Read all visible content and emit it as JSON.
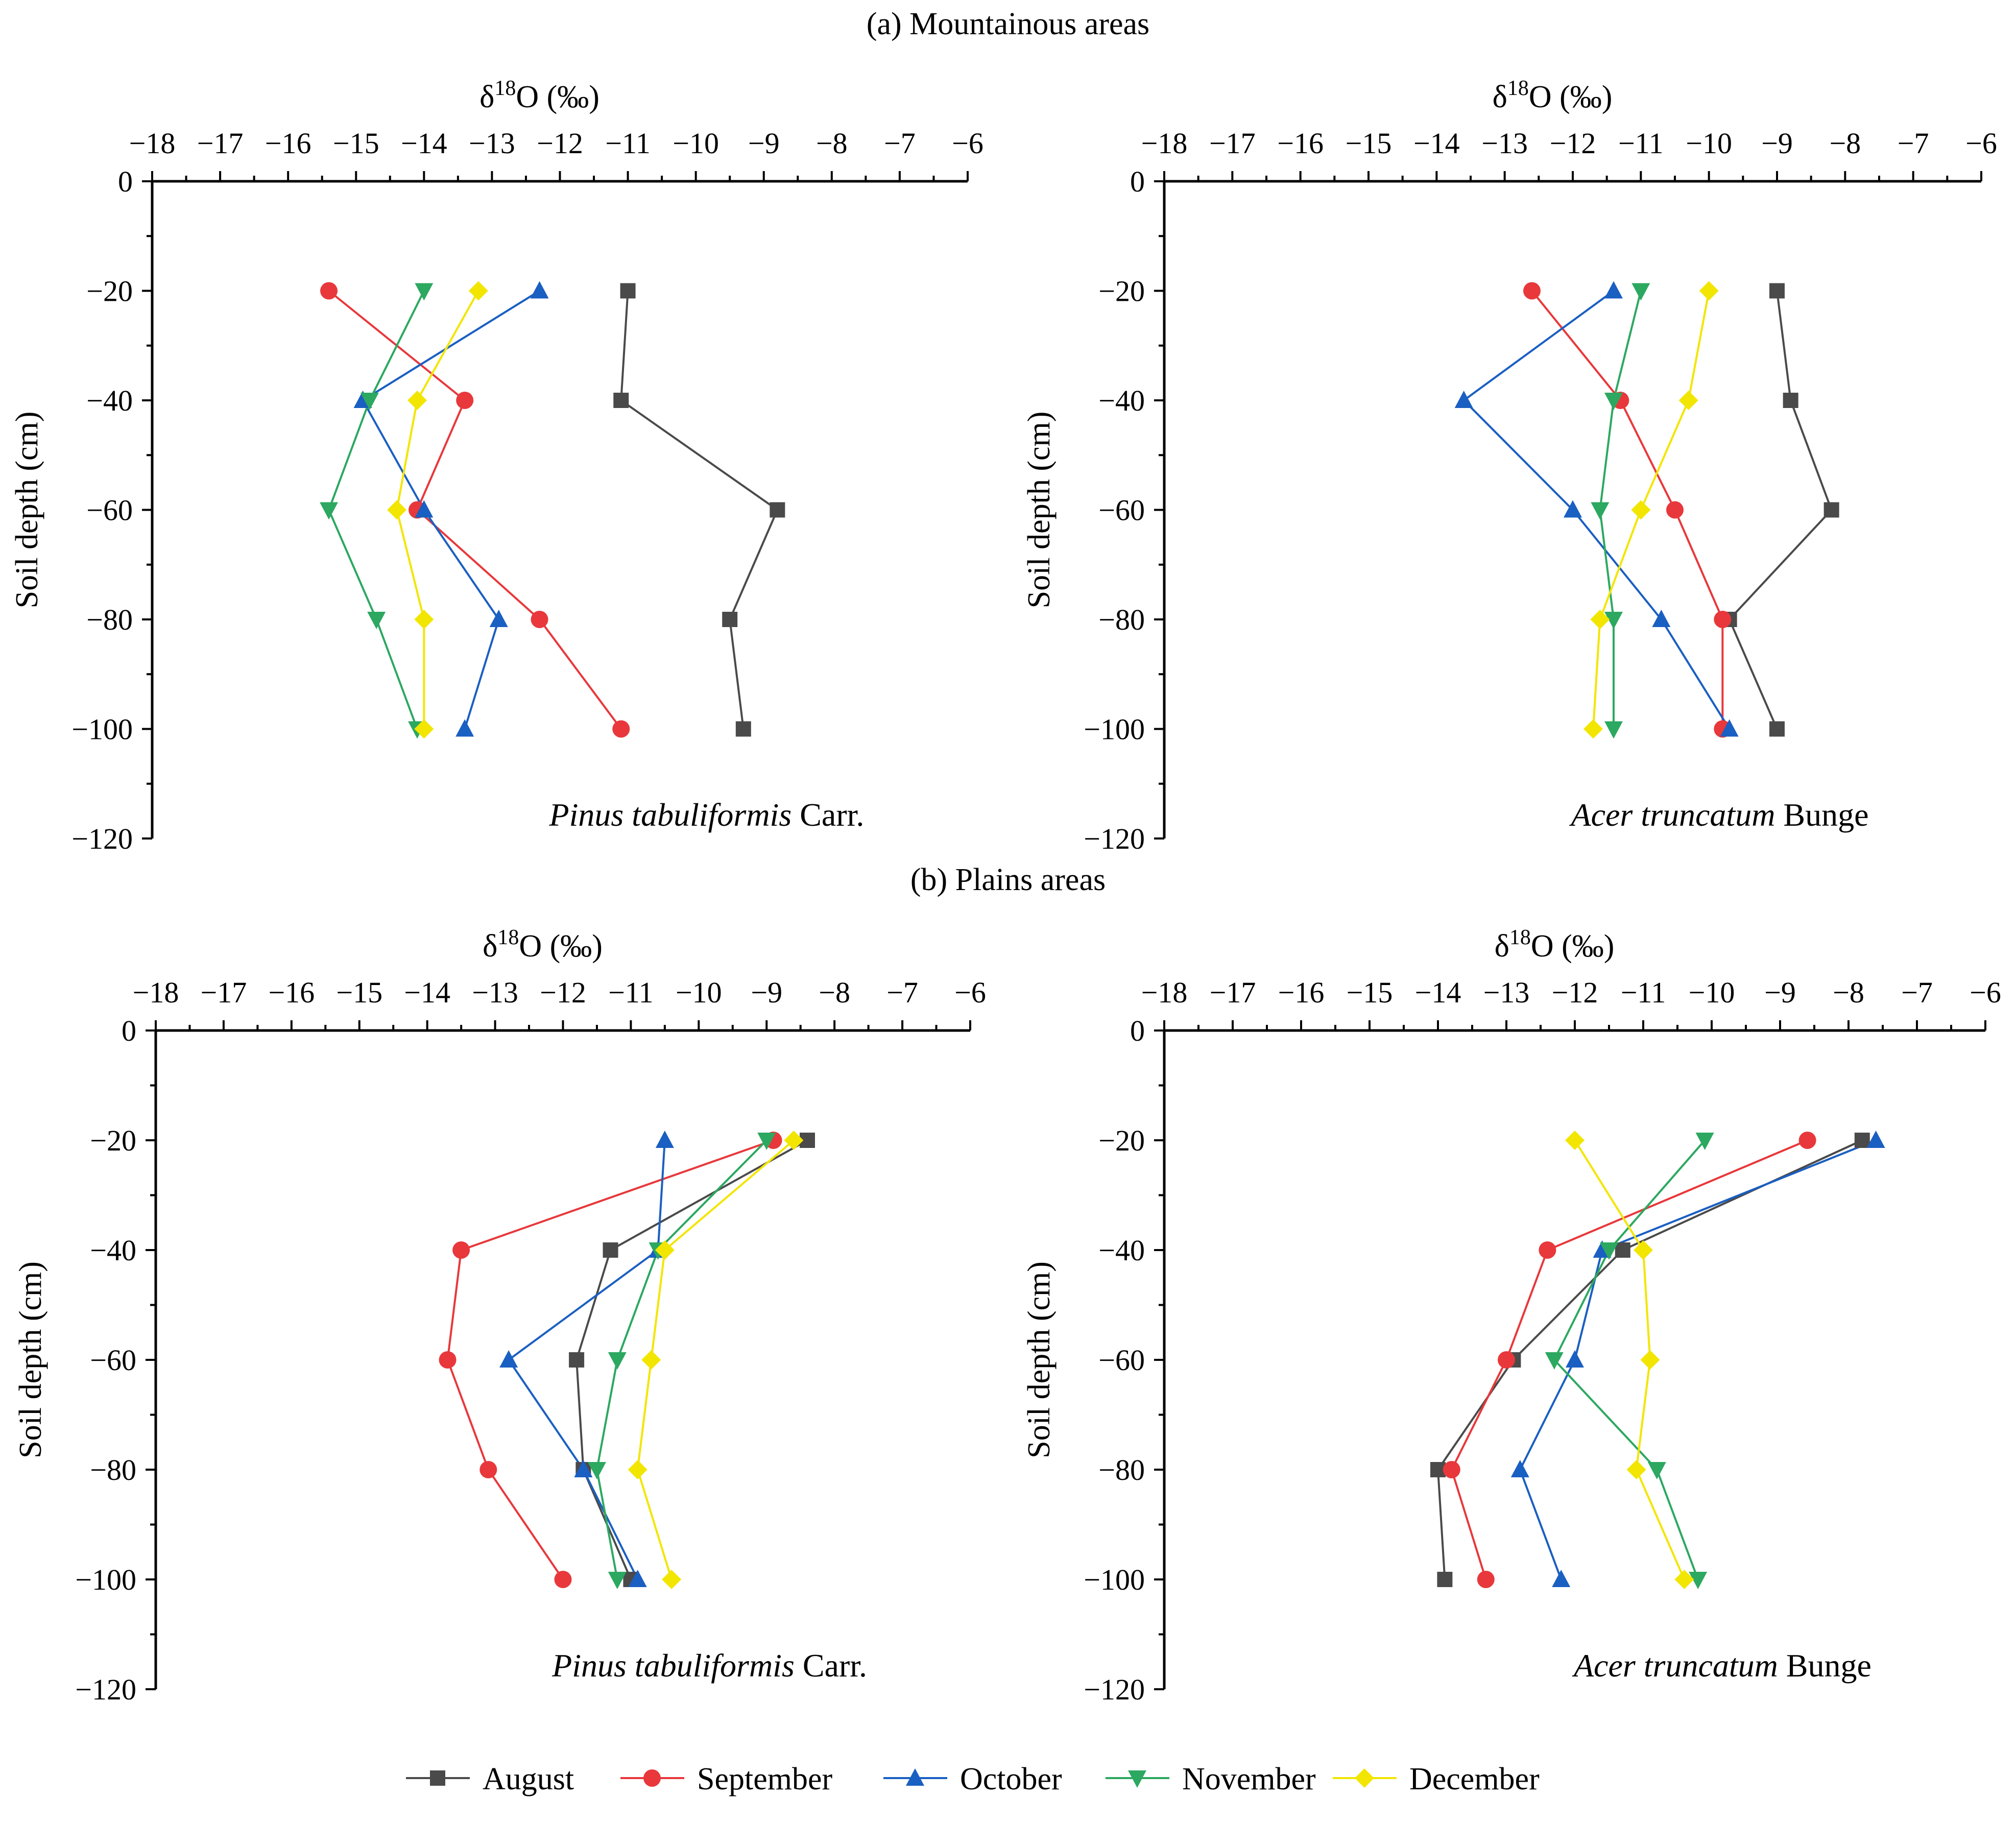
{
  "sections": {
    "a": "(a) Mountainous areas",
    "b": "(b) Plains areas"
  },
  "series_style": [
    {
      "name": "August",
      "color": "#4a4a4a",
      "marker": "square"
    },
    {
      "name": "September",
      "color": "#e8383b",
      "marker": "circle"
    },
    {
      "name": "October",
      "color": "#1a5fc2",
      "marker": "triangle-up"
    },
    {
      "name": "November",
      "color": "#2ca860",
      "marker": "triangle-down"
    },
    {
      "name": "December",
      "color": "#f2e600",
      "marker": "diamond"
    }
  ],
  "chart_data": [
    {
      "type": "line",
      "panel": "Mountainous areas - Pinus tabuliformis",
      "caption_italic": "Pinus tabuliformis",
      "caption_rest": " Carr.",
      "xlabel": "δ18O (‰)",
      "ylabel": "Soil depth (cm)",
      "xlim": [
        -18,
        -6
      ],
      "ylim": [
        -120,
        0
      ],
      "xticks": [
        "−18",
        "−17",
        "−16",
        "−15",
        "−14",
        "−13",
        "−12",
        "−11",
        "−10",
        "−9",
        "−8",
        "−7",
        "−6"
      ],
      "yticks": [
        "0",
        "−20",
        "−40",
        "−60",
        "−80",
        "−100",
        "−120"
      ],
      "depths": [
        -20,
        -40,
        -60,
        -80,
        -100
      ],
      "series": [
        {
          "name": "August",
          "values": [
            -11.0,
            -11.1,
            -8.8,
            -9.5,
            -9.3
          ]
        },
        {
          "name": "September",
          "values": [
            -15.4,
            -13.4,
            -14.1,
            -12.3,
            -11.1
          ]
        },
        {
          "name": "October",
          "values": [
            -12.3,
            -14.9,
            -14.0,
            -12.9,
            -13.4
          ]
        },
        {
          "name": "November",
          "values": [
            -14.0,
            -14.8,
            -15.4,
            -14.7,
            -14.1
          ]
        },
        {
          "name": "December",
          "values": [
            -13.2,
            -14.1,
            -14.4,
            -14.0,
            -14.0
          ]
        }
      ]
    },
    {
      "type": "line",
      "panel": "Mountainous areas - Acer truncatum",
      "caption_italic": "Acer truncatum",
      "caption_rest": " Bunge",
      "xlabel": "δ18O (‰)",
      "ylabel": "Soil depth (cm)",
      "xlim": [
        -18,
        -6
      ],
      "ylim": [
        -120,
        0
      ],
      "xticks": [
        "−18",
        "−17",
        "−16",
        "−15",
        "−14",
        "−13",
        "−12",
        "−11",
        "−10",
        "−9",
        "−8",
        "−7",
        "−6"
      ],
      "yticks": [
        "0",
        "−20",
        "−40",
        "−60",
        "−80",
        "−100",
        "−120"
      ],
      "depths": [
        -20,
        -40,
        -60,
        -80,
        -100
      ],
      "series": [
        {
          "name": "August",
          "values": [
            -9.0,
            -8.8,
            -8.2,
            -9.7,
            -9.0
          ]
        },
        {
          "name": "September",
          "values": [
            -12.6,
            -11.3,
            -10.5,
            -9.8,
            -9.8
          ]
        },
        {
          "name": "October",
          "values": [
            -11.4,
            -13.6,
            -12.0,
            -10.7,
            -9.7
          ]
        },
        {
          "name": "November",
          "values": [
            -11.0,
            -11.4,
            -11.6,
            -11.4,
            -11.4
          ]
        },
        {
          "name": "December",
          "values": [
            -10.0,
            -10.3,
            -11.0,
            -11.6,
            -11.7
          ]
        }
      ]
    },
    {
      "type": "line",
      "panel": "Plains areas - Pinus tabuliformis",
      "caption_italic": "Pinus tabuliformis",
      "caption_rest": " Carr.",
      "xlabel": "δ18O (‰)",
      "ylabel": "Soil depth (cm)",
      "xlim": [
        -18,
        -6
      ],
      "ylim": [
        -120,
        0
      ],
      "xticks": [
        "−18",
        "−17",
        "−16",
        "−15",
        "−14",
        "−13",
        "−12",
        "−11",
        "−10",
        "−9",
        "−8",
        "−7",
        "−6"
      ],
      "yticks": [
        "0",
        "−20",
        "−40",
        "−60",
        "−80",
        "−100",
        "−120"
      ],
      "depths": [
        -20,
        -40,
        -60,
        -80,
        -100
      ],
      "series": [
        {
          "name": "August",
          "values": [
            -8.4,
            -11.3,
            -11.8,
            -11.7,
            -11.0
          ]
        },
        {
          "name": "September",
          "values": [
            -8.9,
            -13.5,
            -13.7,
            -13.1,
            -12.0
          ]
        },
        {
          "name": "October",
          "values": [
            -10.5,
            -10.6,
            -12.8,
            -11.7,
            -10.9
          ]
        },
        {
          "name": "November",
          "values": [
            -9.0,
            -10.6,
            -11.2,
            -11.5,
            -11.2
          ]
        },
        {
          "name": "December",
          "values": [
            -8.6,
            -10.5,
            -10.7,
            -10.9,
            -10.4
          ]
        }
      ]
    },
    {
      "type": "line",
      "panel": "Plains areas - Acer truncatum",
      "caption_italic": "Acer truncatum",
      "caption_rest": " Bunge",
      "xlabel": "δ18O (‰)",
      "ylabel": "Soil depth (cm)",
      "xlim": [
        -18,
        -6
      ],
      "ylim": [
        -120,
        0
      ],
      "xticks": [
        "−18",
        "−17",
        "−16",
        "−15",
        "−14",
        "−13",
        "−12",
        "−11",
        "−10",
        "−9",
        "−8",
        "−7",
        "−6"
      ],
      "yticks": [
        "0",
        "−20",
        "−40",
        "−60",
        "−80",
        "−100",
        "−120"
      ],
      "depths": [
        -20,
        -40,
        -60,
        -80,
        -100
      ],
      "series": [
        {
          "name": "August",
          "values": [
            -7.8,
            -11.3,
            -12.9,
            -14.0,
            -13.9
          ]
        },
        {
          "name": "September",
          "values": [
            -8.6,
            -12.4,
            -13.0,
            -13.8,
            -13.3
          ]
        },
        {
          "name": "October",
          "values": [
            -7.6,
            -11.6,
            -12.0,
            -12.8,
            -12.2
          ]
        },
        {
          "name": "November",
          "values": [
            -10.1,
            -11.5,
            -12.3,
            -10.8,
            -10.2
          ]
        },
        {
          "name": "December",
          "values": [
            -12.0,
            -11.0,
            -10.9,
            -11.1,
            -10.4
          ]
        }
      ]
    }
  ]
}
